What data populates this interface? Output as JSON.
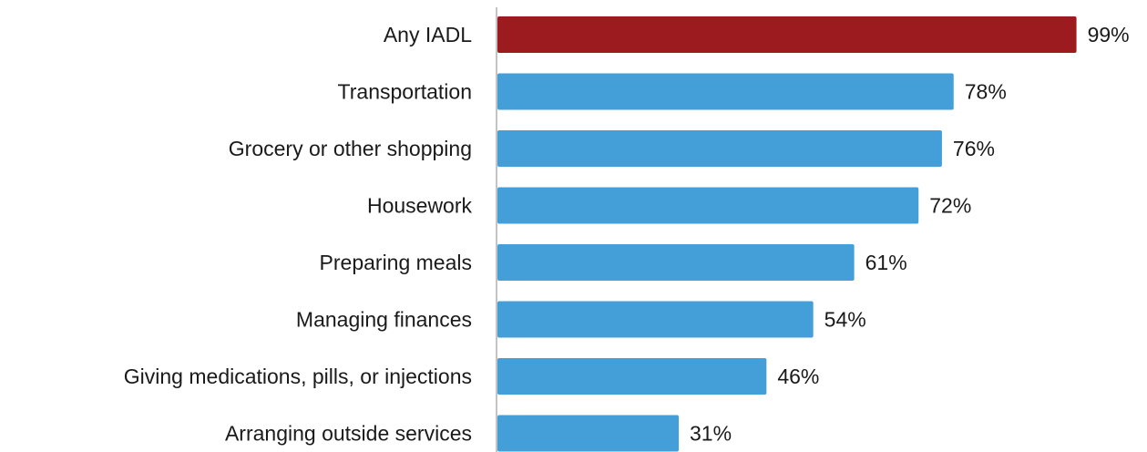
{
  "chart_data": {
    "type": "bar",
    "orientation": "horizontal",
    "categories": [
      "Any IADL",
      "Transportation",
      "Grocery or other shopping",
      "Housework",
      "Preparing meals",
      "Managing finances",
      "Giving medications, pills, or injections",
      "Arranging outside services"
    ],
    "values": [
      99,
      78,
      76,
      72,
      61,
      54,
      46,
      31
    ],
    "value_labels": [
      "99%",
      "78%",
      "76%",
      "72%",
      "61%",
      "54%",
      "46%",
      "31%"
    ],
    "unit": "%",
    "xlim": [
      0,
      100
    ],
    "grid": false,
    "legend": "none",
    "colors": {
      "highlight": "#9b1b1e",
      "default": "#449fd8",
      "axis": "#b0b0b0"
    },
    "highlight_index": 0
  }
}
